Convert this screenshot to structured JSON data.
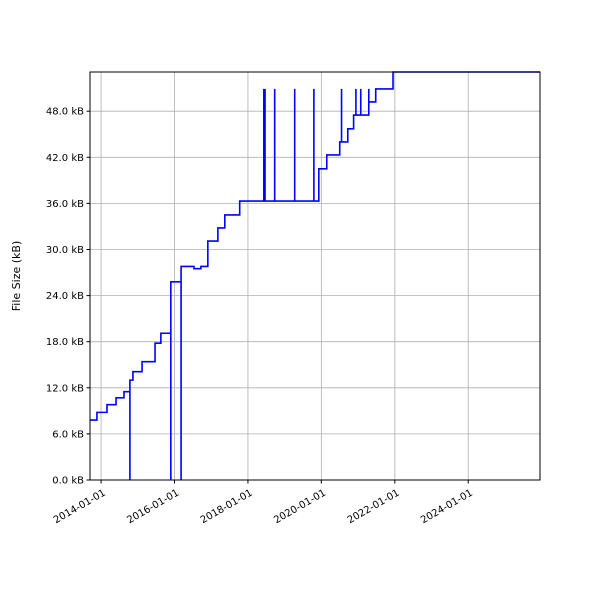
{
  "chart_data": {
    "type": "line",
    "step": "post",
    "title": "",
    "xlabel": "",
    "ylabel": "File Size (kB)",
    "x_is_date": true,
    "xlim": [
      "2013-09-13",
      "2025-12-15"
    ],
    "ylim": [
      0,
      53.1
    ],
    "grid": true,
    "line_color": "#0000ff",
    "xticks": [
      "2014-01-01",
      "2016-01-01",
      "2018-01-01",
      "2020-01-01",
      "2022-01-01",
      "2024-01-01"
    ],
    "yticks": [
      0,
      6,
      12,
      18,
      24,
      30,
      36,
      42,
      48
    ],
    "ytick_labels": [
      "0.0 kB",
      "6.0 kB",
      "12.0 kB",
      "18.0 kB",
      "24.0 kB",
      "30.0 kB",
      "36.0 kB",
      "42.0 kB",
      "48.0 kB"
    ],
    "series": [
      {
        "points": [
          [
            "2013-09-13",
            7.8
          ],
          [
            "2013-11-21",
            8.8
          ],
          [
            "2014-03-01",
            9.8
          ],
          [
            "2014-05-30",
            10.7
          ],
          [
            "2014-08-17",
            11.5
          ],
          [
            "2014-10-15",
            0
          ],
          [
            "2014-10-15",
            13.0
          ],
          [
            "2014-11-14",
            14.1
          ],
          [
            "2015-02-13",
            15.4
          ],
          [
            "2015-06-22",
            17.8
          ],
          [
            "2015-08-19",
            19.1
          ],
          [
            "2015-11-26",
            0
          ],
          [
            "2015-11-26",
            25.8
          ],
          [
            "2016-03-07",
            0
          ],
          [
            "2016-03-07",
            27.8
          ],
          [
            "2016-07-13",
            27.5
          ],
          [
            "2016-09-20",
            27.8
          ],
          [
            "2016-11-28",
            31.1
          ],
          [
            "2017-03-08",
            32.8
          ],
          [
            "2017-05-16",
            34.5
          ],
          [
            "2017-10-11",
            36.3
          ],
          [
            "2018-06-08",
            50.9
          ],
          [
            "2018-06-08",
            36.3
          ],
          [
            "2018-06-20",
            50.9
          ],
          [
            "2018-06-20",
            36.3
          ],
          [
            "2018-09-24",
            50.9
          ],
          [
            "2018-09-24",
            36.3
          ],
          [
            "2019-04-11",
            50.9
          ],
          [
            "2019-04-11",
            36.3
          ],
          [
            "2019-10-19",
            50.9
          ],
          [
            "2019-10-19",
            36.3
          ],
          [
            "2019-12-07",
            40.5
          ],
          [
            "2020-02-24",
            42.3
          ],
          [
            "2020-07-02",
            44.0
          ],
          [
            "2020-07-20",
            50.9
          ],
          [
            "2020-07-20",
            44.0
          ],
          [
            "2020-09-20",
            45.7
          ],
          [
            "2020-11-17",
            47.5
          ],
          [
            "2020-12-10",
            50.9
          ],
          [
            "2020-12-10",
            47.5
          ],
          [
            "2021-01-27",
            50.9
          ],
          [
            "2021-01-27",
            47.5
          ],
          [
            "2021-04-17",
            50.9
          ],
          [
            "2021-04-17",
            49.2
          ],
          [
            "2021-06-25",
            50.9
          ],
          [
            "2021-12-14",
            53.1
          ],
          [
            "2025-12-15",
            53.1
          ]
        ]
      }
    ]
  }
}
